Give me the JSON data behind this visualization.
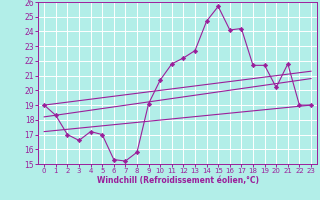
{
  "xlabel": "Windchill (Refroidissement éolien,°C)",
  "bg_color": "#b2eee8",
  "grid_color": "#ffffff",
  "line_color": "#9b1f9b",
  "marker": "D",
  "marker_size": 2.2,
  "xlim": [
    -0.5,
    23.5
  ],
  "ylim": [
    15,
    26
  ],
  "yticks": [
    15,
    16,
    17,
    18,
    19,
    20,
    21,
    22,
    23,
    24,
    25,
    26
  ],
  "xticks": [
    0,
    1,
    2,
    3,
    4,
    5,
    6,
    7,
    8,
    9,
    10,
    11,
    12,
    13,
    14,
    15,
    16,
    17,
    18,
    19,
    20,
    21,
    22,
    23
  ],
  "line1_x": [
    0,
    1,
    2,
    3,
    4,
    5,
    6,
    7,
    8,
    9,
    10,
    11,
    12,
    13,
    14,
    15,
    16,
    17,
    18,
    19,
    20,
    21,
    22,
    23
  ],
  "line1_y": [
    19.0,
    18.3,
    17.0,
    16.6,
    17.2,
    17.0,
    15.3,
    15.2,
    15.8,
    19.1,
    20.7,
    21.8,
    22.2,
    22.7,
    24.7,
    25.7,
    24.1,
    24.2,
    21.7,
    21.7,
    20.2,
    21.8,
    19.0,
    19.0
  ],
  "line2_x": [
    0,
    23
  ],
  "line2_y": [
    19.0,
    21.3
  ],
  "line3_x": [
    0,
    23
  ],
  "line3_y": [
    18.2,
    20.8
  ],
  "line4_x": [
    0,
    23
  ],
  "line4_y": [
    17.2,
    19.0
  ]
}
